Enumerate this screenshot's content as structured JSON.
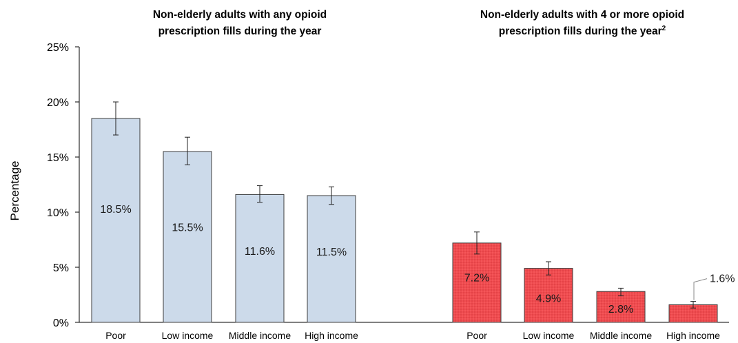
{
  "chart_data": {
    "type": "bar",
    "ylabel": "Percentage",
    "y_ticks": [
      "0%",
      "5%",
      "10%",
      "15%",
      "20%",
      "25%"
    ],
    "ylim": [
      0,
      25
    ],
    "grid": false,
    "panels": [
      {
        "title_lines": [
          "Non-elderly adults with any opioid",
          "prescription fills during the year"
        ],
        "title_sup": "",
        "categories": [
          "Poor",
          "Low income",
          "Middle income",
          "High income"
        ],
        "values": [
          18.5,
          15.5,
          11.6,
          11.5
        ],
        "labels": [
          "18.5%",
          "15.5%",
          "11.6%",
          "11.5%"
        ],
        "error_low": [
          17.0,
          14.3,
          10.9,
          10.7
        ],
        "error_high": [
          20.0,
          16.8,
          12.4,
          12.3
        ],
        "color": "#ccdaea"
      },
      {
        "title_lines": [
          "Non-elderly adults with 4 or more opioid",
          "prescription fills during the year"
        ],
        "title_sup": "2",
        "categories": [
          "Poor",
          "Low income",
          "Middle income",
          "High income"
        ],
        "values": [
          7.2,
          4.9,
          2.8,
          1.6
        ],
        "labels": [
          "7.2%",
          "4.9%",
          "2.8%",
          "1.6%"
        ],
        "error_low": [
          6.2,
          4.3,
          2.4,
          1.3
        ],
        "error_high": [
          8.2,
          5.5,
          3.1,
          1.9
        ],
        "color": "#f04b4f"
      }
    ]
  }
}
